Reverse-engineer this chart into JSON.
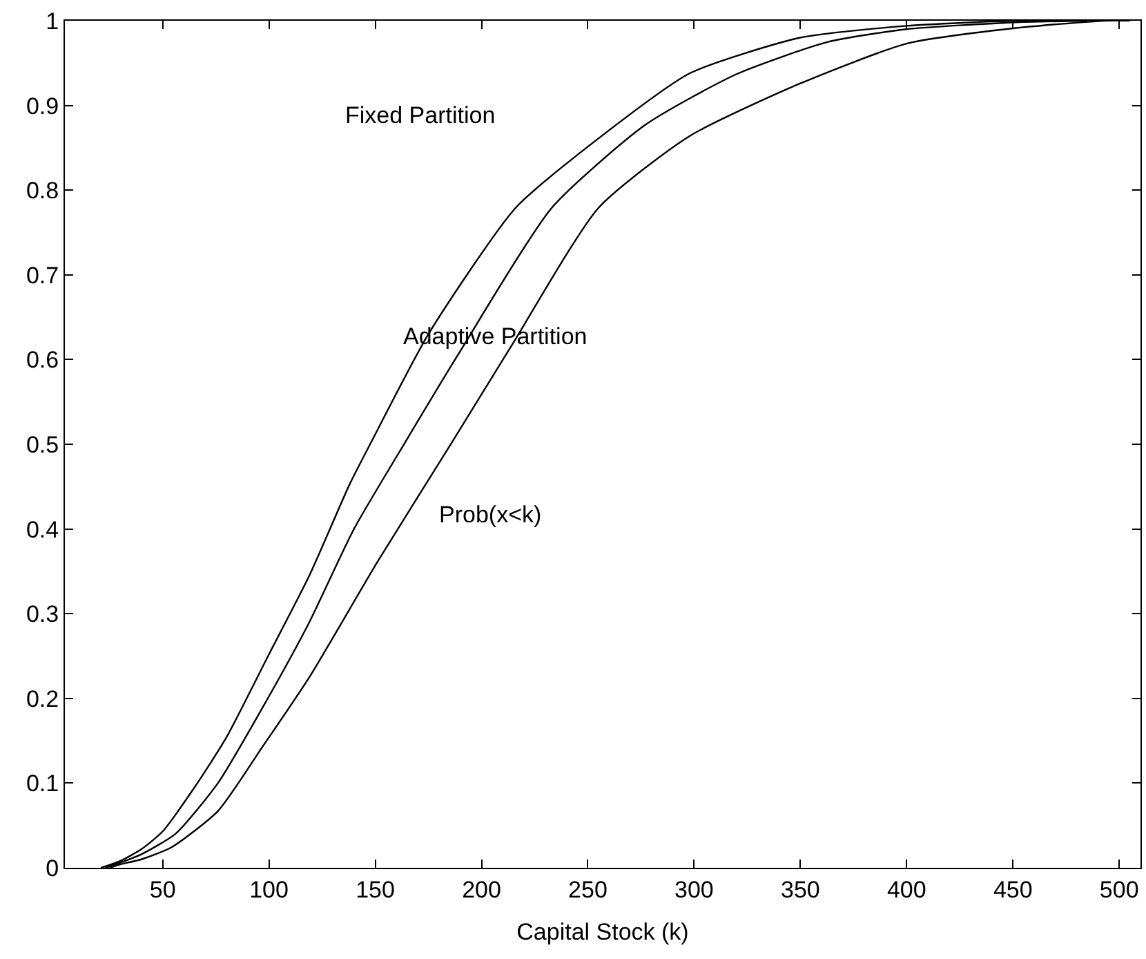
{
  "chart_data": {
    "type": "line",
    "xlabel": "Capital Stock (k)",
    "xlim": [
      4,
      510
    ],
    "ylim": [
      0,
      1
    ],
    "xticks": [
      50,
      100,
      150,
      200,
      250,
      300,
      350,
      400,
      450,
      500
    ],
    "yticks": [
      0,
      0.1,
      0.2,
      0.3,
      0.4,
      0.5,
      0.6,
      0.7,
      0.8,
      0.9,
      1
    ],
    "marker": "none",
    "line_style": "solid",
    "series": [
      {
        "color": "#000000",
        "x": [
          21,
          30,
          40,
          50,
          65,
          80,
          100,
          119,
          138,
          148,
          175,
          216,
          255,
          298,
          350,
          400,
          450,
          465
        ],
        "values": [
          0,
          0.008,
          0.022,
          0.043,
          0.095,
          0.154,
          0.252,
          0.345,
          0.453,
          0.502,
          0.63,
          0.779,
          0.861,
          0.938,
          0.98,
          0.994,
          1,
          1
        ]
      },
      {
        "color": "#000000",
        "x": [
          23,
          30,
          40,
          56,
          76,
          99,
          119,
          140,
          164,
          190,
          233,
          277,
          320,
          363,
          400,
          450,
          485
        ],
        "values": [
          0,
          0.006,
          0.016,
          0.04,
          0.1,
          0.198,
          0.29,
          0.4,
          0.502,
          0.61,
          0.779,
          0.877,
          0.937,
          0.975,
          0.99,
          0.998,
          1
        ]
      },
      {
        "color": "#000000",
        "x": [
          25,
          30,
          40,
          54,
          76,
          97,
          119,
          151,
          186,
          215,
          255,
          298,
          350,
          400,
          450,
          493,
          505
        ],
        "values": [
          0,
          0.004,
          0.01,
          0.024,
          0.067,
          0.143,
          0.225,
          0.361,
          0.502,
          0.62,
          0.779,
          0.864,
          0.926,
          0.973,
          0.991,
          1,
          1
        ]
      }
    ],
    "annotations": [
      "Fixed Partition",
      "Adaptive Partition",
      "Prob(x<k)"
    ]
  }
}
